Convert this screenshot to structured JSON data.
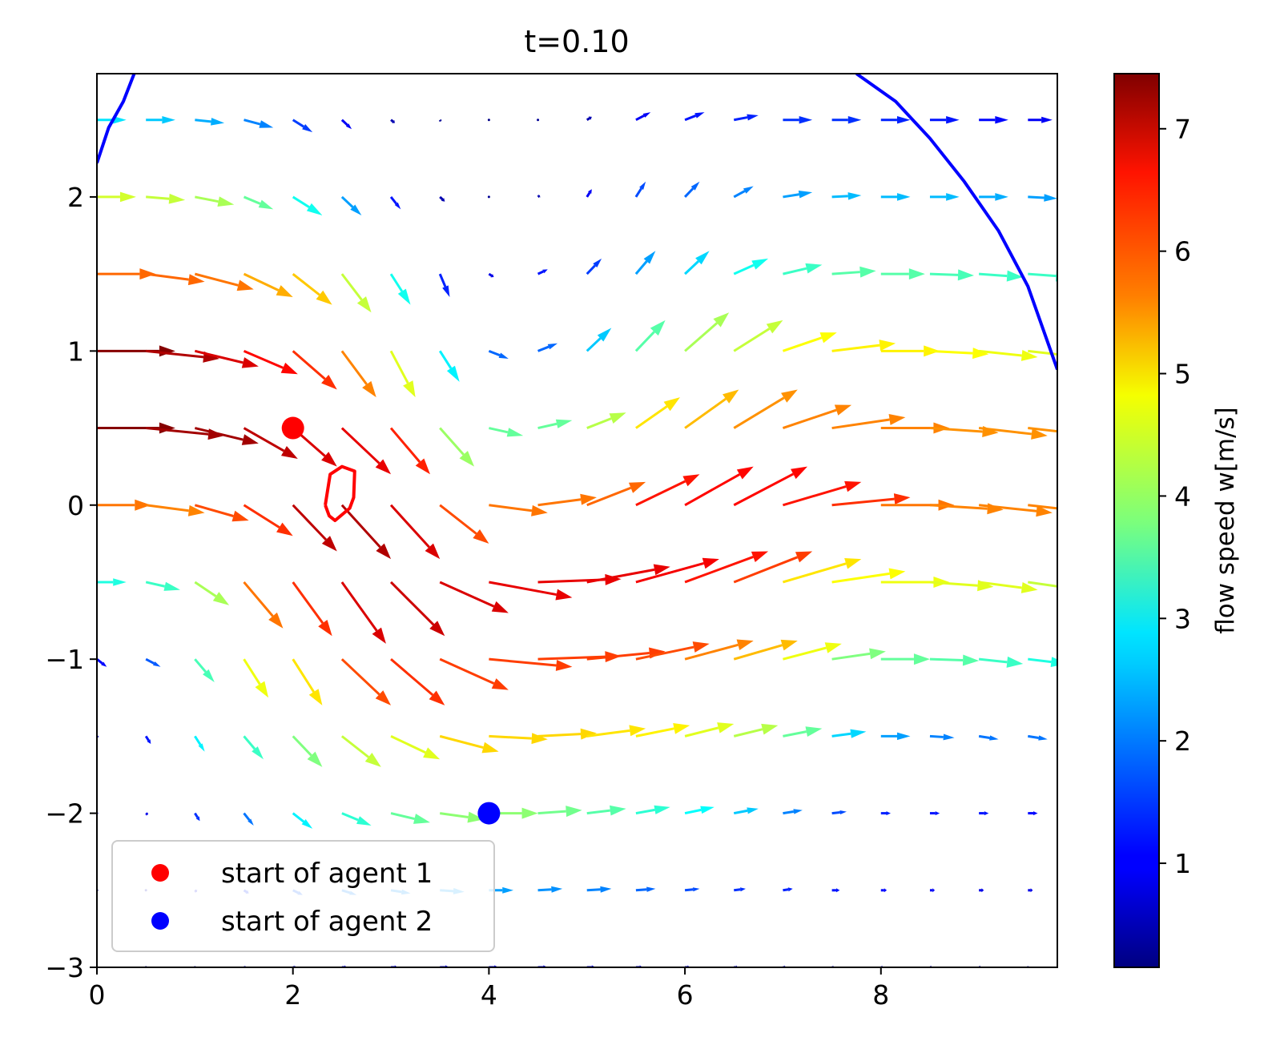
{
  "chart_data": {
    "type": "quiver",
    "title": "t=0.10",
    "xlabel": "",
    "ylabel": "",
    "xlim": [
      0,
      9.8
    ],
    "ylim": [
      -3,
      2.8
    ],
    "x_ticks": [
      0,
      2,
      4,
      6,
      8
    ],
    "x_tick_labels": [
      "0",
      "2",
      "4",
      "6",
      "8"
    ],
    "y_ticks": [
      -3,
      -2,
      -1,
      0,
      1,
      2
    ],
    "y_tick_labels": [
      "−3",
      "−2",
      "−1",
      "0",
      "1",
      "2"
    ],
    "grid": false,
    "legend": {
      "placement": "lower-left",
      "entries": [
        {
          "label": "start of agent 1",
          "color": "#ff0000"
        },
        {
          "label": "start of agent 2",
          "color": "#0000ff"
        }
      ]
    },
    "colorbar": {
      "label": "flow speed w[m/s]",
      "colormap": "jet",
      "range": [
        0.15,
        7.45
      ],
      "ticks": [
        1,
        2,
        3,
        4,
        5,
        6,
        7
      ],
      "tick_labels": [
        "1",
        "2",
        "3",
        "4",
        "5",
        "6",
        "7"
      ]
    },
    "grid_x": [
      0,
      0.5,
      1,
      1.5,
      2,
      2.5,
      3,
      3.5,
      4,
      4.5,
      5,
      5.5,
      6,
      6.5,
      7,
      7.5,
      8,
      8.5,
      9,
      9.5
    ],
    "grid_y": [
      2.5,
      2,
      1.5,
      1,
      0.5,
      0,
      -0.5,
      -1,
      -1.5,
      -2,
      -2.5,
      -3
    ],
    "vector_dx": [
      [
        0.3,
        0.3,
        0.3,
        0.3,
        0.2,
        0.1,
        0.04,
        0.01,
        0.01,
        0.01,
        0.05,
        0.15,
        0.2,
        0.25,
        0.3,
        0.3,
        0.3,
        0.3,
        0.3,
        0.25
      ],
      [
        0.4,
        0.4,
        0.4,
        0.3,
        0.3,
        0.2,
        0.1,
        0.05,
        0.01,
        0.02,
        0.05,
        0.1,
        0.15,
        0.2,
        0.3,
        0.3,
        0.3,
        0.3,
        0.3,
        0.3
      ],
      [
        0.6,
        0.6,
        0.6,
        0.5,
        0.4,
        0.3,
        0.2,
        0.1,
        0.05,
        0.1,
        0.15,
        0.2,
        0.25,
        0.35,
        0.4,
        0.45,
        0.45,
        0.45,
        0.45,
        0.45
      ],
      [
        0.8,
        0.75,
        0.65,
        0.55,
        0.45,
        0.35,
        0.25,
        0.2,
        0.2,
        0.2,
        0.25,
        0.3,
        0.45,
        0.5,
        0.55,
        0.65,
        0.6,
        0.6,
        0.6,
        0.55
      ],
      [
        0.8,
        0.8,
        0.65,
        0.55,
        0.45,
        0.5,
        0.4,
        0.35,
        0.35,
        0.35,
        0.4,
        0.45,
        0.55,
        0.65,
        0.7,
        0.75,
        0.7,
        0.7,
        0.7,
        0.7
      ],
      [
        0.55,
        0.6,
        0.55,
        0.5,
        0.45,
        0.5,
        0.5,
        0.5,
        0.6,
        0.6,
        0.6,
        0.65,
        0.7,
        0.75,
        0.8,
        0.8,
        0.75,
        0.75,
        0.75,
        0.7
      ],
      [
        0.3,
        0.35,
        0.35,
        0.4,
        0.4,
        0.45,
        0.55,
        0.7,
        0.85,
        0.85,
        0.85,
        0.85,
        0.85,
        0.8,
        0.8,
        0.75,
        0.7,
        0.65,
        0.6,
        0.55
      ],
      [
        0.1,
        0.15,
        0.2,
        0.25,
        0.3,
        0.5,
        0.55,
        0.7,
        0.85,
        0.85,
        0.8,
        0.75,
        0.7,
        0.65,
        0.6,
        0.55,
        0.5,
        0.5,
        0.45,
        0.4
      ],
      [
        0.01,
        0.05,
        0.1,
        0.2,
        0.3,
        0.4,
        0.5,
        0.6,
        0.6,
        0.6,
        0.6,
        0.55,
        0.5,
        0.45,
        0.4,
        0.35,
        0.3,
        0.25,
        0.2,
        0.2
      ],
      [
        0.01,
        0.02,
        0.05,
        0.1,
        0.2,
        0.3,
        0.4,
        0.45,
        0.5,
        0.45,
        0.4,
        0.35,
        0.3,
        0.25,
        0.2,
        0.15,
        0.1,
        0.1,
        0.1,
        0.1
      ],
      [
        0.01,
        0.01,
        0.02,
        0.05,
        0.1,
        0.15,
        0.2,
        0.25,
        0.25,
        0.25,
        0.25,
        0.2,
        0.15,
        0.12,
        0.1,
        0.08,
        0.06,
        0.05,
        0.05,
        0.05
      ],
      [
        0.01,
        0.01,
        0.01,
        0.02,
        0.03,
        0.05,
        0.07,
        0.1,
        0.1,
        0.1,
        0.09,
        0.07,
        0.05,
        0.04,
        0.03,
        0.02,
        0.02,
        0.02,
        0.02,
        0.01
      ]
    ],
    "vector_dy": [
      [
        0.0,
        0.0,
        -0.02,
        -0.05,
        -0.08,
        -0.06,
        -0.02,
        -0.01,
        0.0,
        0.0,
        0.02,
        0.05,
        0.05,
        0.03,
        0.0,
        0.0,
        0.0,
        0.0,
        0.0,
        0.0
      ],
      [
        0.0,
        -0.02,
        -0.05,
        -0.08,
        -0.12,
        -0.12,
        -0.08,
        -0.03,
        0.0,
        0.01,
        0.05,
        0.1,
        0.1,
        0.07,
        0.03,
        0.01,
        0.0,
        0.0,
        0.0,
        -0.01
      ],
      [
        0.0,
        -0.05,
        -0.1,
        -0.15,
        -0.2,
        -0.25,
        -0.2,
        -0.15,
        -0.02,
        0.03,
        0.1,
        0.15,
        0.15,
        0.1,
        0.06,
        0.02,
        0.0,
        -0.01,
        -0.02,
        -0.02
      ],
      [
        0.0,
        -0.05,
        -0.1,
        -0.15,
        -0.25,
        -0.3,
        -0.3,
        -0.2,
        -0.05,
        0.05,
        0.15,
        0.2,
        0.25,
        0.2,
        0.12,
        0.05,
        0.0,
        -0.02,
        -0.04,
        -0.04
      ],
      [
        0.0,
        -0.05,
        -0.1,
        -0.2,
        -0.25,
        -0.3,
        -0.3,
        -0.25,
        -0.05,
        0.05,
        0.1,
        0.2,
        0.25,
        0.25,
        0.15,
        0.07,
        0.0,
        -0.03,
        -0.05,
        -0.05
      ],
      [
        0.0,
        -0.05,
        -0.1,
        -0.2,
        -0.3,
        -0.35,
        -0.35,
        -0.25,
        -0.05,
        0.05,
        0.15,
        0.2,
        0.25,
        0.25,
        0.15,
        0.05,
        0.0,
        -0.03,
        -0.05,
        -0.05
      ],
      [
        0.0,
        -0.05,
        -0.15,
        -0.3,
        -0.35,
        -0.4,
        -0.35,
        -0.2,
        -0.1,
        0.02,
        0.1,
        0.15,
        0.2,
        0.2,
        0.15,
        0.07,
        0.0,
        -0.03,
        -0.05,
        -0.05
      ],
      [
        -0.05,
        -0.05,
        -0.15,
        -0.25,
        -0.3,
        -0.3,
        -0.3,
        -0.2,
        -0.05,
        0.02,
        0.05,
        0.1,
        0.12,
        0.12,
        0.1,
        0.05,
        0.0,
        -0.01,
        -0.03,
        -0.03
      ],
      [
        -0.01,
        -0.05,
        -0.1,
        -0.15,
        -0.2,
        -0.2,
        -0.15,
        -0.1,
        -0.02,
        0.02,
        0.05,
        0.07,
        0.08,
        0.07,
        0.05,
        0.03,
        0.0,
        -0.01,
        -0.02,
        -0.02
      ],
      [
        0.0,
        -0.01,
        -0.05,
        -0.08,
        -0.1,
        -0.08,
        -0.06,
        -0.04,
        0.0,
        0.02,
        0.03,
        0.04,
        0.04,
        0.03,
        0.02,
        0.01,
        0.0,
        0.0,
        0.0,
        0.0
      ],
      [
        0.0,
        0.0,
        -0.01,
        -0.02,
        -0.03,
        -0.03,
        -0.02,
        -0.01,
        0.0,
        0.01,
        0.01,
        0.01,
        0.01,
        0.01,
        0.01,
        0.0,
        0.0,
        0.0,
        0.0,
        0.0
      ],
      [
        0.0,
        0.0,
        0.0,
        0.0,
        0.0,
        0.0,
        0.0,
        0.0,
        0.0,
        0.0,
        0.0,
        0.0,
        0.0,
        0.0,
        0.0,
        0.0,
        0.0,
        0.0,
        0.0,
        0.0
      ]
    ],
    "speed": [
      [
        2.7,
        2.5,
        2.3,
        2.0,
        1.5,
        1.0,
        0.5,
        0.3,
        0.2,
        0.3,
        0.5,
        1.0,
        1.2,
        1.3,
        1.4,
        1.4,
        1.3,
        1.2,
        1.1,
        1.0
      ],
      [
        4.4,
        4.3,
        4.1,
        3.6,
        3.0,
        2.2,
        1.2,
        0.5,
        0.3,
        0.5,
        1.0,
        1.6,
        1.8,
        2.0,
        2.2,
        2.4,
        2.4,
        2.4,
        2.3,
        2.2
      ],
      [
        5.8,
        5.8,
        5.7,
        5.3,
        5.1,
        4.3,
        3.0,
        1.3,
        0.9,
        1.2,
        1.5,
        2.2,
        2.6,
        3.0,
        3.3,
        3.5,
        3.5,
        3.4,
        3.3,
        3.3
      ],
      [
        7.4,
        7.1,
        6.8,
        6.5,
        6.2,
        5.6,
        4.5,
        2.8,
        1.8,
        1.8,
        2.5,
        3.5,
        4.1,
        4.3,
        4.7,
        4.8,
        4.8,
        4.7,
        4.6,
        4.5
      ],
      [
        7.4,
        7.2,
        7.2,
        7.0,
        6.8,
        6.7,
        6.3,
        4.0,
        3.6,
        3.6,
        4.2,
        4.9,
        5.2,
        5.5,
        5.6,
        5.6,
        5.6,
        5.5,
        5.5,
        5.5
      ],
      [
        5.7,
        5.6,
        6.0,
        6.2,
        7.0,
        7.1,
        6.8,
        6.0,
        5.7,
        5.7,
        5.8,
        6.4,
        6.5,
        6.5,
        6.4,
        6.2,
        5.7,
        5.6,
        5.6,
        5.6
      ],
      [
        3.1,
        3.3,
        4.1,
        5.7,
        6.2,
        6.8,
        6.9,
        6.8,
        6.7,
        6.7,
        6.7,
        6.6,
        6.4,
        6.1,
        4.9,
        4.7,
        4.6,
        4.5,
        4.5,
        4.3
      ],
      [
        1.1,
        1.7,
        3.4,
        4.6,
        4.9,
        6.0,
        6.2,
        6.1,
        6.1,
        6.1,
        6.1,
        6.0,
        5.6,
        5.2,
        4.6,
        3.8,
        3.6,
        3.5,
        3.3,
        3.1
      ],
      [
        0.5,
        1.2,
        2.8,
        3.3,
        3.8,
        4.3,
        4.5,
        5.0,
        5.0,
        5.0,
        4.9,
        4.8,
        4.5,
        4.2,
        3.6,
        2.6,
        2.2,
        2.0,
        1.9,
        1.9
      ],
      [
        0.4,
        0.9,
        1.4,
        1.9,
        2.8,
        3.2,
        3.6,
        3.9,
        3.9,
        3.7,
        3.5,
        3.2,
        2.9,
        2.5,
        2.0,
        1.6,
        1.3,
        1.2,
        1.2,
        1.1
      ],
      [
        0.2,
        0.5,
        0.8,
        1.3,
        1.7,
        2.0,
        2.1,
        2.2,
        2.2,
        2.1,
        2.0,
        1.8,
        1.6,
        1.4,
        1.3,
        1.2,
        1.1,
        1.0,
        0.9,
        0.9
      ],
      [
        0.1,
        0.2,
        0.3,
        0.5,
        0.7,
        0.9,
        1.0,
        1.0,
        1.0,
        1.0,
        0.9,
        0.8,
        0.7,
        0.6,
        0.5,
        0.4,
        0.4,
        0.3,
        0.3,
        0.3
      ]
    ],
    "boundary_curves": [
      {
        "color": "#0000ff",
        "x": [
          0,
          0.12,
          0.27,
          0.38
        ],
        "y": [
          2.22,
          2.45,
          2.62,
          2.8
        ]
      },
      {
        "color": "#0000ff",
        "x": [
          7.75,
          8.15,
          8.5,
          8.85,
          9.2,
          9.5,
          9.8
        ],
        "y": [
          2.8,
          2.62,
          2.38,
          2.1,
          1.78,
          1.42,
          0.88
        ]
      }
    ],
    "agent_path": {
      "color": "#ff0000",
      "x": [
        2.33,
        2.38,
        2.5,
        2.63,
        2.62,
        2.58,
        2.43,
        2.37,
        2.33
      ],
      "y": [
        0.0,
        0.2,
        0.25,
        0.22,
        0.05,
        -0.02,
        -0.1,
        -0.07,
        0.0
      ]
    },
    "agent_starts": [
      {
        "label": "start of agent 1",
        "x": 2,
        "y": 0.5,
        "color": "#ff0000"
      },
      {
        "label": "start of agent 2",
        "x": 4,
        "y": -2,
        "color": "#0000ff"
      }
    ]
  }
}
